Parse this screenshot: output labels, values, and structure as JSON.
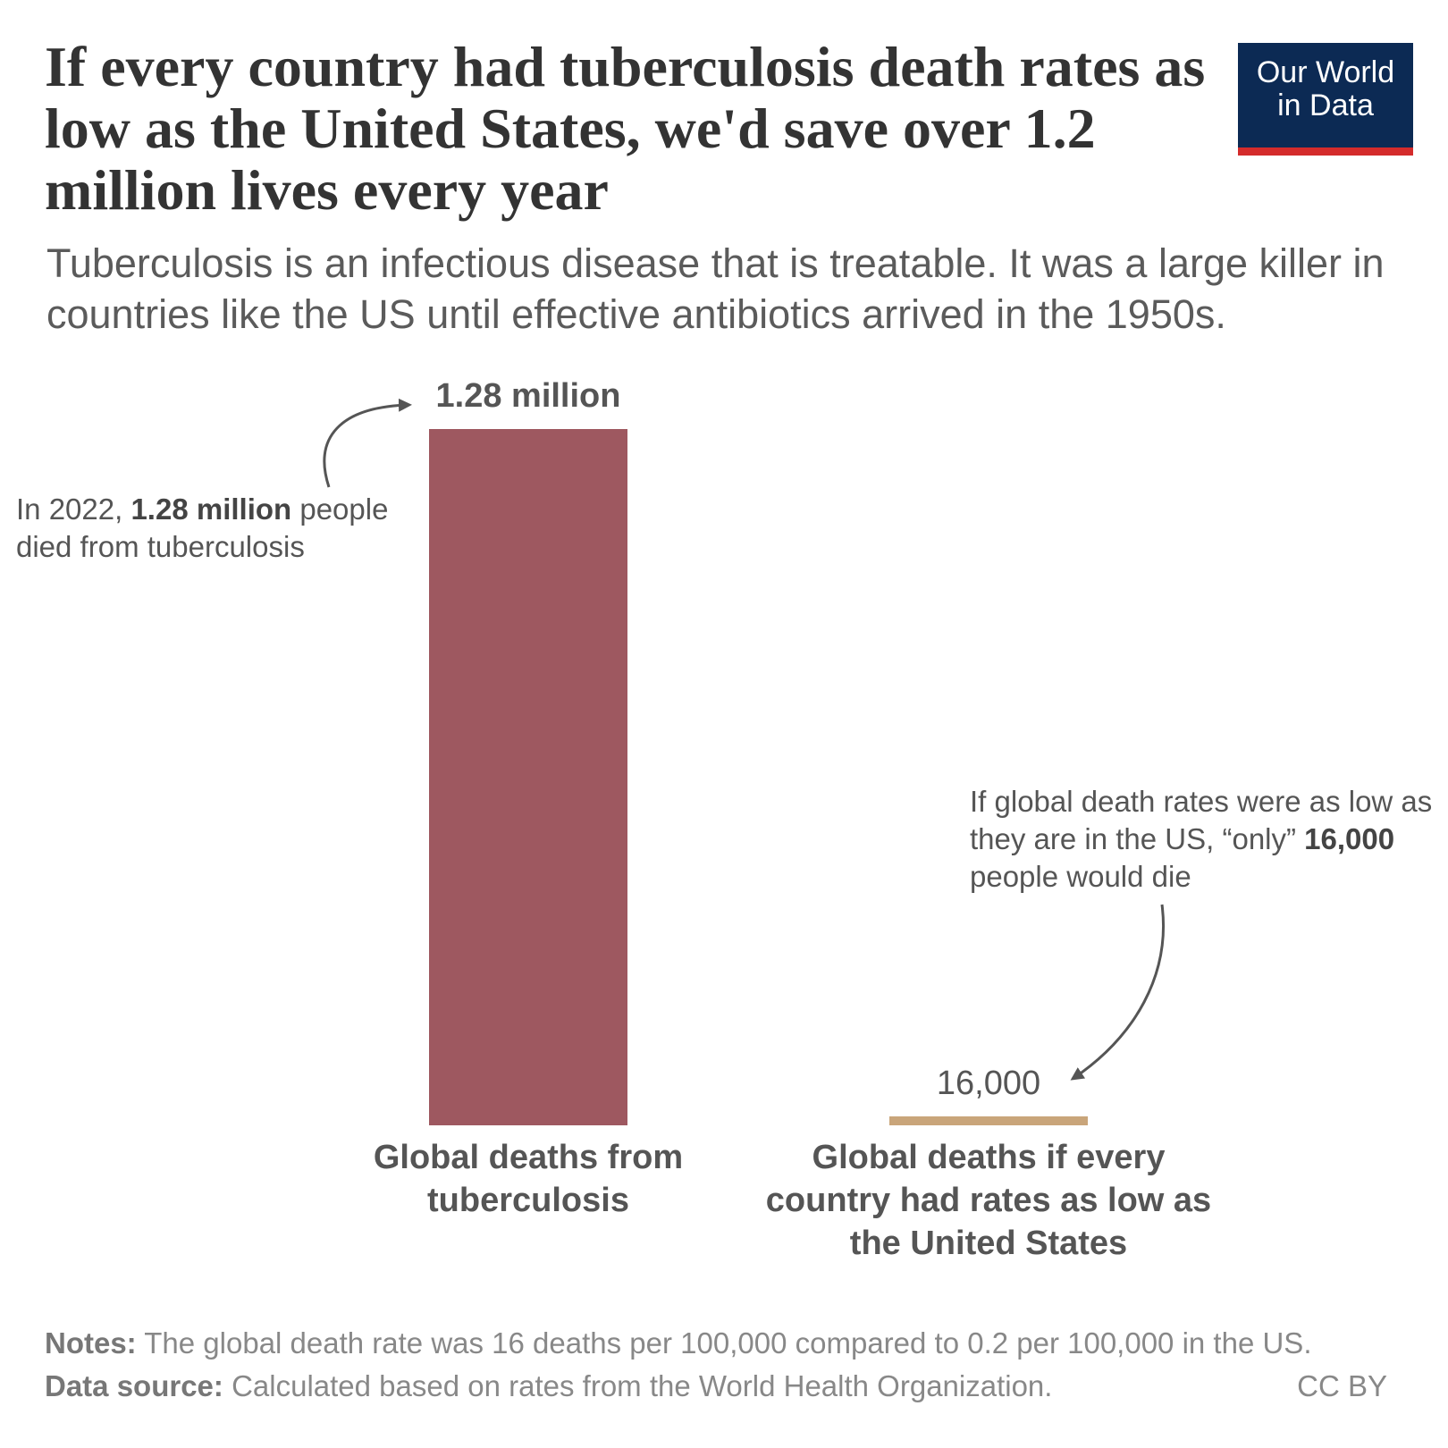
{
  "chart_data": {
    "type": "bar",
    "title": "If every country had tuberculosis death rates as low as the United States, we'd save over 1.2 million lives every year",
    "subtitle": "Tuberculosis is an infectious disease that is treatable. It was a large killer in countries like the US until effective antibiotics arrived in the 1950s.",
    "logo": [
      "Our World",
      "in Data"
    ],
    "categories": [
      "Global deaths from tuberculosis",
      "Global deaths if every country had rates as low as the United States"
    ],
    "values": [
      1280000,
      16000
    ],
    "value_labels": [
      "1.28 million",
      "16,000"
    ],
    "colors": [
      "#9e5860",
      "#c9a57a"
    ],
    "annotations": [
      {
        "before": "In 2022, ",
        "bold": "1.28 million",
        "after": " people died from tuberculosis"
      },
      {
        "before": "If global death rates were as low as they are in the US, “only” ",
        "bold": "16,000",
        "after": " people would die"
      }
    ],
    "notes": {
      "label": "Notes:",
      "text": "The global death rate was 16 deaths per 100,000 compared to 0.2 per 100,000 in the US."
    },
    "source": {
      "label": "Data source:",
      "text": "Calculated based on rates from the World Health Organization."
    },
    "license": "CC BY"
  }
}
